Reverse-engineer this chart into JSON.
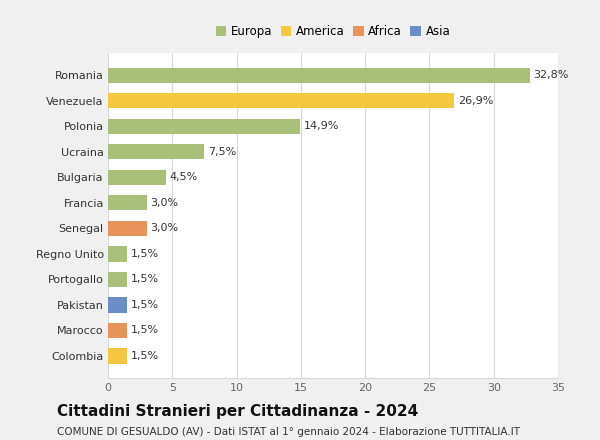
{
  "categories": [
    "Colombia",
    "Marocco",
    "Pakistan",
    "Portogallo",
    "Regno Unito",
    "Senegal",
    "Francia",
    "Bulgaria",
    "Ucraina",
    "Polonia",
    "Venezuela",
    "Romania"
  ],
  "values": [
    1.5,
    1.5,
    1.5,
    1.5,
    1.5,
    3.0,
    3.0,
    4.5,
    7.5,
    14.9,
    26.9,
    32.8
  ],
  "colors": [
    "#f5c842",
    "#e8935a",
    "#6b8fc4",
    "#a8c07a",
    "#a8c07a",
    "#e8935a",
    "#a8c07a",
    "#a8c07a",
    "#a8c07a",
    "#a8c07a",
    "#f5c842",
    "#a8c07a"
  ],
  "labels": [
    "1,5%",
    "1,5%",
    "1,5%",
    "1,5%",
    "1,5%",
    "3,0%",
    "3,0%",
    "4,5%",
    "7,5%",
    "14,9%",
    "26,9%",
    "32,8%"
  ],
  "legend_order": [
    "Europa",
    "America",
    "Africa",
    "Asia"
  ],
  "legend_colors": {
    "Europa": "#a8c07a",
    "America": "#f5c842",
    "Africa": "#e8935a",
    "Asia": "#6b8fc4"
  },
  "xlim": [
    0,
    35
  ],
  "xticks": [
    0,
    5,
    10,
    15,
    20,
    25,
    30,
    35
  ],
  "title": "Cittadini Stranieri per Cittadinanza - 2024",
  "subtitle": "COMUNE DI GESUALDO (AV) - Dati ISTAT al 1° gennaio 2024 - Elaborazione TUTTITALIA.IT",
  "background_color": "#f0f0f0",
  "plot_background": "#ffffff",
  "grid_color": "#d8d8d8",
  "bar_height": 0.6,
  "title_fontsize": 11,
  "subtitle_fontsize": 7.5,
  "tick_fontsize": 8,
  "label_fontsize": 8,
  "legend_fontsize": 8.5
}
